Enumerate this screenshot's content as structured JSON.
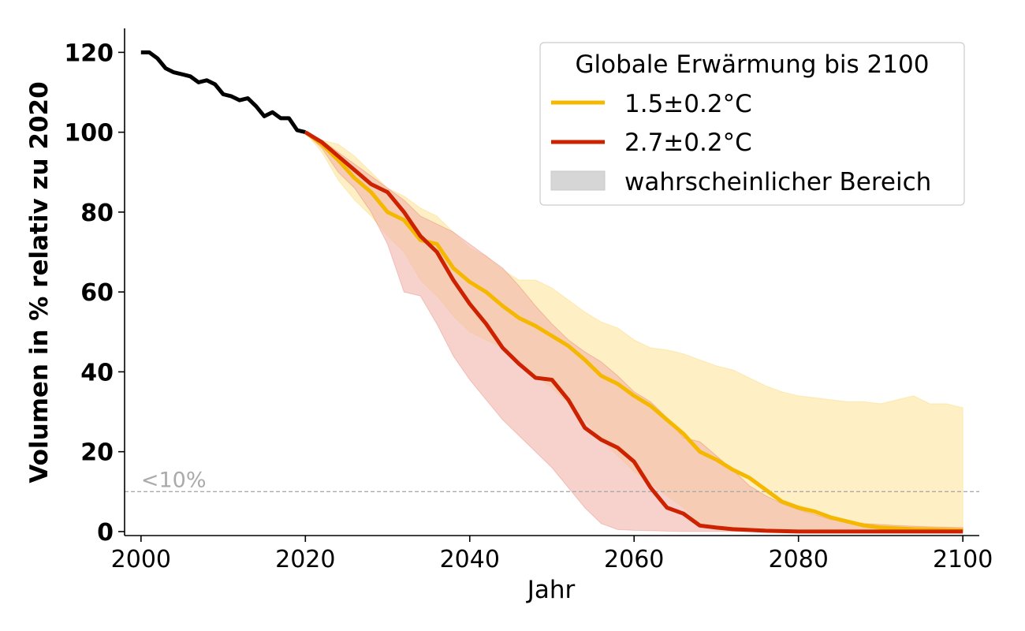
{
  "chart_data": {
    "type": "line",
    "xlabel": "Jahr",
    "ylabel": "Volumen in % relativ zu 2020",
    "xlim": [
      1998,
      2102
    ],
    "ylim": [
      -1,
      126
    ],
    "xticks": [
      2000,
      2020,
      2040,
      2060,
      2080,
      2100
    ],
    "yticks": [
      0,
      20,
      40,
      60,
      80,
      100,
      120
    ],
    "grid": false,
    "threshold": {
      "y": 10,
      "label": "<10%",
      "color": "#aaaaaa"
    },
    "legend": {
      "title": "Globale Erwärmung bis 2100",
      "placement": "top-right",
      "entries": [
        {
          "label": "1.5±0.2°C",
          "color": "#f5b800",
          "kind": "line"
        },
        {
          "label": "2.7±0.2°C",
          "color": "#cc2200",
          "kind": "line"
        },
        {
          "label": "wahrscheinlicher Bereich",
          "color": "#d6d6d6",
          "kind": "patch"
        }
      ]
    },
    "historical": {
      "color": "#000000",
      "x": [
        2000,
        2001,
        2002,
        2003,
        2004,
        2005,
        2006,
        2007,
        2008,
        2009,
        2010,
        2011,
        2012,
        2013,
        2014,
        2015,
        2016,
        2017,
        2018,
        2019,
        2020
      ],
      "y": [
        120,
        120,
        118.5,
        116,
        115,
        114.5,
        114,
        112.5,
        113,
        112,
        109.5,
        109,
        108,
        108.5,
        106.5,
        104,
        105,
        103.5,
        103.5,
        100.5,
        100
      ]
    },
    "series": [
      {
        "name": "1.5±0.2°C",
        "color": "#f5b800",
        "band_color": "#fde9b0",
        "x": [
          2020,
          2022,
          2024,
          2026,
          2028,
          2030,
          2032,
          2034,
          2036,
          2038,
          2040,
          2042,
          2044,
          2046,
          2048,
          2050,
          2052,
          2054,
          2056,
          2058,
          2060,
          2062,
          2064,
          2066,
          2068,
          2070,
          2072,
          2074,
          2076,
          2078,
          2080,
          2082,
          2084,
          2086,
          2088,
          2090,
          2092,
          2094,
          2096,
          2098,
          2100
        ],
        "y": [
          100,
          97,
          93,
          88.5,
          85,
          80,
          78,
          73,
          72,
          66,
          62.5,
          60,
          56.5,
          53.5,
          51.5,
          49,
          46.5,
          43,
          39,
          37,
          34,
          31.5,
          28,
          24.5,
          20,
          18,
          15.5,
          13.5,
          10.5,
          7.5,
          6,
          5,
          3.5,
          2.5,
          1.5,
          1,
          0.8,
          0.6,
          0.5,
          0.4,
          0.3
        ],
        "upper": [
          100,
          98,
          97,
          94,
          90,
          86,
          84,
          81,
          79,
          75,
          71,
          69,
          65.5,
          63,
          63,
          61,
          58,
          55,
          52.5,
          51,
          48,
          46,
          45.5,
          44.5,
          43,
          41.5,
          40.5,
          38.5,
          36.5,
          35,
          34,
          33.5,
          33,
          32.5,
          32.5,
          32,
          33,
          34,
          32,
          32,
          31
        ],
        "lower": [
          100,
          95,
          88,
          83,
          79,
          74,
          70,
          63,
          59,
          54,
          50,
          48,
          46,
          43,
          39,
          36,
          32,
          28,
          23,
          19,
          15,
          12,
          9,
          6,
          2,
          0.5,
          0.2,
          0.1,
          0,
          0,
          0,
          0,
          0,
          0,
          0,
          0,
          0,
          0,
          0,
          0,
          0
        ]
      },
      {
        "name": "2.7±0.2°C",
        "color": "#cc2200",
        "band_color": "#f2b4ac",
        "x": [
          2020,
          2022,
          2024,
          2026,
          2028,
          2030,
          2032,
          2034,
          2036,
          2038,
          2040,
          2042,
          2044,
          2046,
          2048,
          2050,
          2052,
          2054,
          2056,
          2058,
          2060,
          2062,
          2064,
          2066,
          2068,
          2070,
          2072,
          2074,
          2076,
          2078,
          2080,
          2084,
          2088,
          2092,
          2096,
          2100
        ],
        "y": [
          100,
          97.5,
          94,
          90.5,
          87,
          85,
          80,
          74,
          70,
          63,
          57,
          52,
          46,
          42,
          38.5,
          38,
          33,
          26,
          23,
          21,
          17.5,
          11,
          6,
          4.5,
          1.5,
          1,
          0.6,
          0.4,
          0.2,
          0.1,
          0,
          0,
          0,
          0,
          0,
          0
        ],
        "upper": [
          100,
          98,
          95,
          92,
          89,
          86,
          83,
          79,
          77,
          75,
          72,
          69,
          66,
          61.5,
          56.5,
          52,
          48,
          45,
          42.5,
          39,
          35,
          32.5,
          28.5,
          23.5,
          22.5,
          19,
          15.5,
          11.5,
          9,
          7,
          5.5,
          3,
          2,
          1.5,
          1.2,
          1
        ],
        "lower": [
          100,
          96,
          90,
          86,
          80,
          72,
          60,
          59,
          52,
          44,
          38,
          33,
          28,
          24,
          20,
          16,
          11,
          6,
          2,
          0.5,
          0.3,
          0.2,
          0.1,
          0,
          0,
          0,
          0,
          0,
          0,
          0,
          0,
          0,
          0,
          0,
          0,
          0
        ]
      }
    ]
  }
}
